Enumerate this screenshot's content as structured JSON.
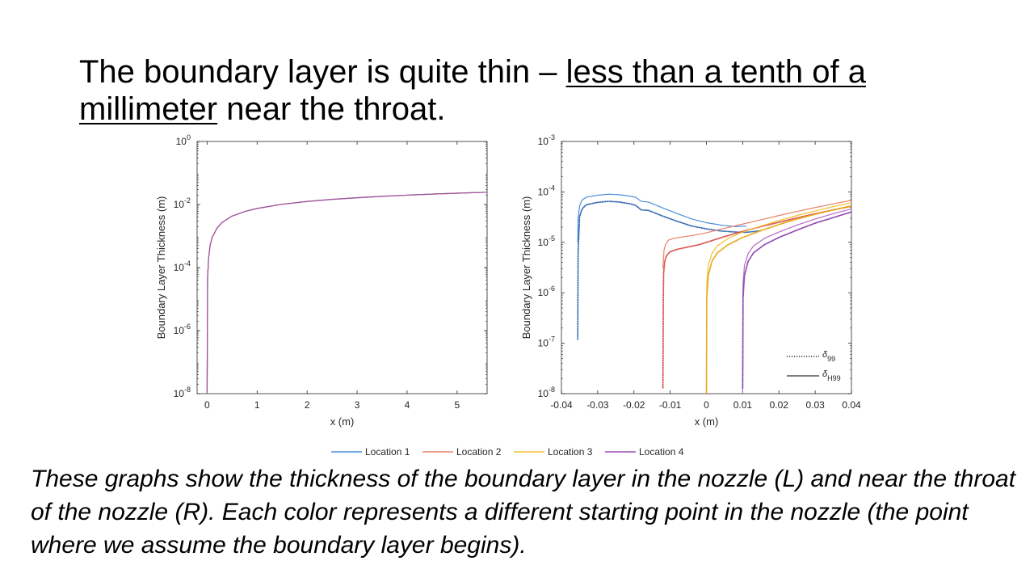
{
  "slide": {
    "title_part1": "The boundary layer is quite thin – ",
    "title_part2": "less than a tenth of a millimeter",
    "title_part3": " near the throat.",
    "caption": "These graphs show the thickness of the boundary layer in the nozzle (L) and near the throat of the nozzle (R). Each color represents a different starting point in the nozzle (the point where we assume the boundary layer begins)."
  },
  "legend": {
    "entries": [
      {
        "name": "Location 1",
        "color": "#4a90d9"
      },
      {
        "name": "Location 2",
        "color": "#e8826a"
      },
      {
        "name": "Location 3",
        "color": "#f2c12e"
      },
      {
        "name": "Location 4",
        "color": "#9b4fb0"
      }
    ]
  },
  "chart_data": [
    {
      "type": "line",
      "xlabel": "x (m)",
      "ylabel": "Boundary Layer Thickness (m)",
      "xlim": [
        -0.2,
        5.6
      ],
      "yscale": "log",
      "ylim": [
        1e-08,
        1
      ],
      "xticks": [
        0,
        1,
        2,
        3,
        4,
        5
      ],
      "xtick_labels": [
        "0",
        "1",
        "2",
        "3",
        "4",
        "5"
      ],
      "yticks": [
        1e-08,
        1e-06,
        0.0001,
        0.01,
        1
      ],
      "ytick_labels": [
        [
          "10",
          "-8"
        ],
        [
          "10",
          "-6"
        ],
        [
          "10",
          "-4"
        ],
        [
          "10",
          "-2"
        ],
        [
          "10",
          "0"
        ]
      ],
      "grid": false,
      "series": [
        {
          "name": "Location 1",
          "x": [
            0,
            0.01,
            0.03,
            0.06,
            0.1,
            0.2,
            0.3,
            0.5,
            0.75,
            1,
            1.5,
            2,
            2.5,
            3,
            3.5,
            4,
            4.5,
            5,
            5.6
          ],
          "y": [
            1e-08,
            5e-05,
            0.0002,
            0.0005,
            0.0009,
            0.0018,
            0.0027,
            0.0043,
            0.006,
            0.0075,
            0.0102,
            0.0125,
            0.0146,
            0.0164,
            0.0182,
            0.0198,
            0.0214,
            0.0229,
            0.0245
          ]
        },
        {
          "name": "Location 2",
          "x": [
            0,
            0.01,
            0.03,
            0.06,
            0.1,
            0.2,
            0.3,
            0.5,
            0.75,
            1,
            1.5,
            2,
            2.5,
            3,
            3.5,
            4,
            4.5,
            5,
            5.6
          ],
          "y": [
            1e-08,
            5e-05,
            0.0002,
            0.0005,
            0.0009,
            0.0018,
            0.0027,
            0.0043,
            0.006,
            0.0075,
            0.0102,
            0.0125,
            0.0146,
            0.0164,
            0.0182,
            0.0198,
            0.0214,
            0.0229,
            0.0245
          ]
        },
        {
          "name": "Location 3",
          "x": [
            0,
            0.01,
            0.03,
            0.06,
            0.1,
            0.2,
            0.3,
            0.5,
            0.75,
            1,
            1.5,
            2,
            2.5,
            3,
            3.5,
            4,
            4.5,
            5,
            5.6
          ],
          "y": [
            1e-08,
            5e-05,
            0.0002,
            0.0005,
            0.0009,
            0.0018,
            0.0027,
            0.0043,
            0.006,
            0.0075,
            0.0102,
            0.0125,
            0.0146,
            0.0164,
            0.0182,
            0.0198,
            0.0214,
            0.0229,
            0.0245
          ]
        },
        {
          "name": "Location 4",
          "x": [
            0,
            0.01,
            0.03,
            0.06,
            0.1,
            0.2,
            0.3,
            0.5,
            0.75,
            1,
            1.5,
            2,
            2.5,
            3,
            3.5,
            4,
            4.5,
            5,
            5.6
          ],
          "y": [
            1e-08,
            5e-05,
            0.0002,
            0.0005,
            0.0009,
            0.0018,
            0.0027,
            0.0043,
            0.006,
            0.0075,
            0.0102,
            0.0125,
            0.0146,
            0.0164,
            0.0182,
            0.0198,
            0.0214,
            0.0229,
            0.0245
          ]
        }
      ]
    },
    {
      "type": "line",
      "xlabel": "x (m)",
      "ylabel": "Boundary Layer Thickness (m)",
      "xlim": [
        -0.04,
        0.04
      ],
      "yscale": "log",
      "ylim": [
        1e-08,
        0.001
      ],
      "xticks": [
        -0.04,
        -0.03,
        -0.02,
        -0.01,
        0,
        0.01,
        0.02,
        0.03,
        0.04
      ],
      "xtick_labels": [
        "-0.04",
        "-0.03",
        "-0.02",
        "-0.01",
        "0",
        "0.01",
        "0.02",
        "0.03",
        "0.04"
      ],
      "yticks": [
        1e-08,
        1e-07,
        1e-06,
        1e-05,
        0.0001,
        0.001
      ],
      "ytick_labels": [
        [
          "10",
          "-8"
        ],
        [
          "10",
          "-7"
        ],
        [
          "10",
          "-6"
        ],
        [
          "10",
          "-5"
        ],
        [
          "10",
          "-4"
        ],
        [
          "10",
          "-3"
        ]
      ],
      "grid": false,
      "line_styles": [
        {
          "label": "δ",
          "sub": "99",
          "style": "dotted"
        },
        {
          "label": "δ",
          "sub": "H99",
          "style": "solid"
        }
      ],
      "series": [
        {
          "name": "Location 1",
          "color": "#4a90d9",
          "style": "solid",
          "x": [
            -0.0355,
            -0.0354,
            -0.035,
            -0.0345,
            -0.034,
            -0.033,
            -0.03,
            -0.027,
            -0.024,
            -0.021,
            -0.0195,
            -0.018,
            -0.016,
            -0.012,
            -0.008,
            -0.004,
            0,
            0.004,
            0.008,
            0.011
          ],
          "y": [
            1e-05,
            3e-05,
            5.2e-05,
            6.5e-05,
            7.2e-05,
            7.9e-05,
            8.6e-05,
            9e-05,
            8.8e-05,
            8.2e-05,
            7.8e-05,
            6.5e-05,
            6.3e-05,
            4.8e-05,
            3.7e-05,
            2.9e-05,
            2.45e-05,
            2.2e-05,
            2.05e-05,
            2.1e-05
          ]
        },
        {
          "name": "Location 1",
          "color": "#3b6fb3",
          "style": "dotted",
          "x": [
            -0.0355,
            -0.0354,
            -0.035,
            -0.0345,
            -0.034,
            -0.033,
            -0.03,
            -0.027,
            -0.024,
            -0.021,
            -0.0195,
            -0.018,
            -0.016,
            -0.012,
            -0.008,
            -0.004,
            0,
            0.004,
            0.008,
            0.011,
            0.015
          ],
          "y": [
            1.2e-07,
            6e-06,
            3.2e-05,
            4.2e-05,
            4.9e-05,
            5.6e-05,
            6.2e-05,
            6.5e-05,
            6.3e-05,
            5.8e-05,
            5.4e-05,
            4.4e-05,
            4.3e-05,
            3.3e-05,
            2.6e-05,
            2.1e-05,
            1.85e-05,
            1.68e-05,
            1.6e-05,
            1.58e-05,
            1.7e-05
          ]
        },
        {
          "name": "Location 2",
          "color": "#e8826a",
          "style": "solid",
          "x": [
            -0.012,
            -0.0119,
            -0.0117,
            -0.0113,
            -0.0105,
            -0.009,
            -0.006,
            -0.003,
            0,
            0.005,
            0.01,
            0.015,
            0.02,
            0.025,
            0.03,
            0.035,
            0.04
          ],
          "y": [
            3e-06,
            4e-06,
            7e-06,
            9e-06,
            1.1e-05,
            1.2e-05,
            1.3e-05,
            1.4e-05,
            1.55e-05,
            1.9e-05,
            2.3e-05,
            2.8e-05,
            3.4e-05,
            4.1e-05,
            4.9e-05,
            5.8e-05,
            6.8e-05
          ]
        },
        {
          "name": "Location 2",
          "color": "#d9534f",
          "style": "dotted",
          "x": [
            -0.012,
            -0.0119,
            -0.0118,
            -0.0115,
            -0.011,
            -0.01,
            -0.008,
            -0.005,
            -0.002,
            0,
            0.005,
            0.01,
            0.015,
            0.02,
            0.025,
            0.03,
            0.035,
            0.04
          ],
          "y": [
            1.3e-08,
            8e-07,
            2.5e-06,
            4.2e-06,
            5.5e-06,
            6.5e-06,
            7.3e-06,
            8.1e-06,
            9e-06,
            1e-05,
            1.3e-05,
            1.65e-05,
            2.05e-05,
            2.5e-05,
            3.05e-05,
            3.7e-05,
            4.4e-05,
            5.2e-05
          ]
        },
        {
          "name": "Location 3",
          "color": "#f2c12e",
          "style": "solid",
          "x": [
            0,
            0.0001,
            0.0005,
            0.0015,
            0.003,
            0.006,
            0.01,
            0.015,
            0.02,
            0.025,
            0.03,
            0.035,
            0.04
          ],
          "y": [
            1e-08,
            1.5e-06,
            3.5e-06,
            6e-06,
            8.5e-06,
            1.2e-05,
            1.6e-05,
            2.1e-05,
            2.7e-05,
            3.4e-05,
            4.2e-05,
            5.1e-05,
            6.1e-05
          ]
        },
        {
          "name": "Location 3",
          "color": "#e6a817",
          "style": "dotted",
          "x": [
            0,
            0.0001,
            0.0005,
            0.0015,
            0.003,
            0.006,
            0.01,
            0.015,
            0.02,
            0.025,
            0.03,
            0.035,
            0.04
          ],
          "y": [
            1e-08,
            8e-07,
            2.2e-06,
            4.2e-06,
            6.2e-06,
            9e-06,
            1.25e-05,
            1.7e-05,
            2.25e-05,
            2.9e-05,
            3.6e-05,
            4.4e-05,
            5.3e-05
          ]
        },
        {
          "name": "Location 4",
          "color": "#b36ac4",
          "style": "solid",
          "x": [
            0.01,
            0.0101,
            0.0105,
            0.0115,
            0.013,
            0.016,
            0.02,
            0.025,
            0.03,
            0.035,
            0.04
          ],
          "y": [
            1e-08,
            1.5e-06,
            3.5e-06,
            6e-06,
            8.5e-06,
            1.2e-05,
            1.6e-05,
            2.2e-05,
            2.9e-05,
            3.7e-05,
            4.6e-05
          ]
        },
        {
          "name": "Location 4",
          "color": "#8e44ad",
          "style": "dotted",
          "x": [
            0.01,
            0.0101,
            0.0105,
            0.0115,
            0.013,
            0.016,
            0.02,
            0.025,
            0.03,
            0.035,
            0.04
          ],
          "y": [
            1.3e-08,
            8e-07,
            2.2e-06,
            4.2e-06,
            6.2e-06,
            9e-06,
            1.25e-05,
            1.75e-05,
            2.4e-05,
            3.1e-05,
            4e-05
          ]
        }
      ]
    }
  ]
}
